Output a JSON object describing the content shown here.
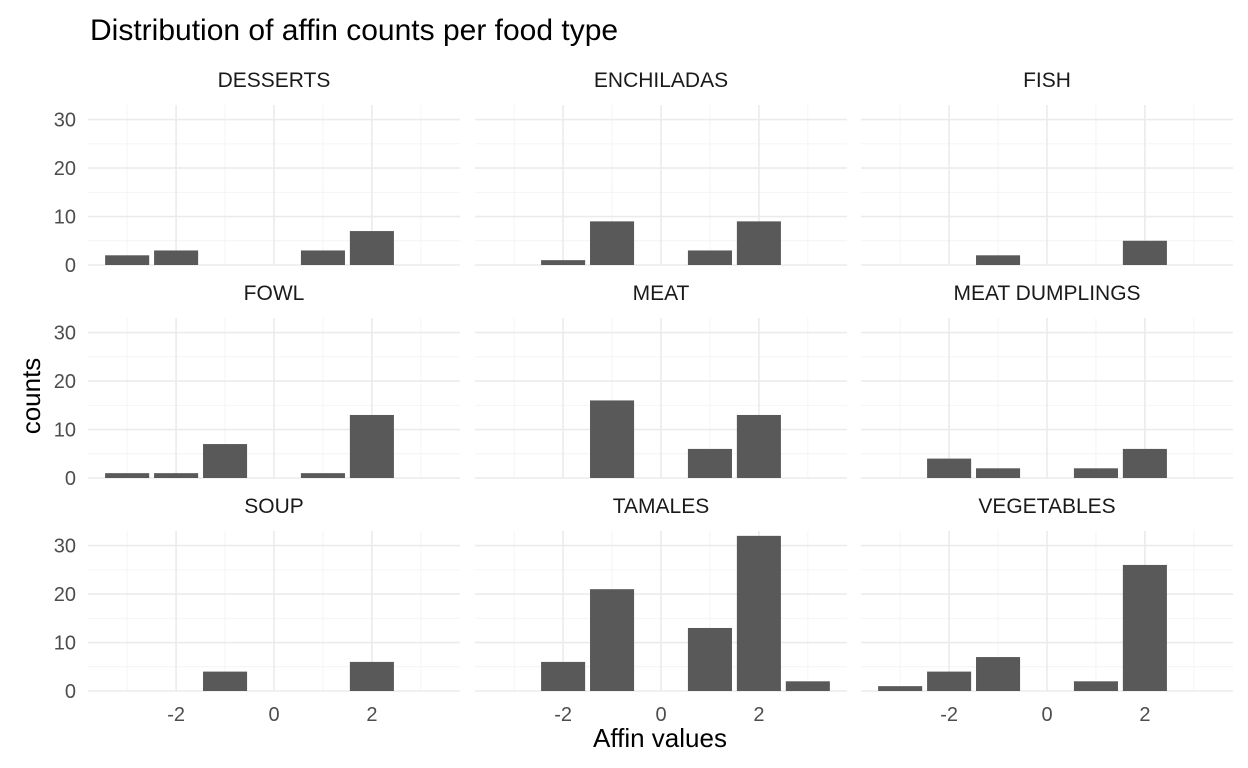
{
  "chart_data": {
    "type": "bar",
    "title": "Distribution of affin counts per food type",
    "xlabel": "Affin values",
    "ylabel": "counts",
    "layout": "facet-grid 3x3",
    "grid": true,
    "x_ticks": [
      "-2",
      "0",
      "2"
    ],
    "x_tick_values": [
      -2,
      0,
      2
    ],
    "y_ticks": [
      "0",
      "10",
      "20",
      "30"
    ],
    "y_tick_values": [
      0,
      10,
      20,
      30
    ],
    "xlim": [
      -3.8,
      3.8
    ],
    "ylim": [
      0,
      33
    ],
    "bar_color": "#595959",
    "panels": [
      {
        "name": "DESSERTS",
        "bars": [
          {
            "x": -3,
            "y": 2
          },
          {
            "x": -2,
            "y": 3
          },
          {
            "x": 1,
            "y": 3
          },
          {
            "x": 2,
            "y": 7
          }
        ]
      },
      {
        "name": "ENCHILADAS",
        "bars": [
          {
            "x": -2,
            "y": 1
          },
          {
            "x": -1,
            "y": 9
          },
          {
            "x": 1,
            "y": 3
          },
          {
            "x": 2,
            "y": 9
          }
        ]
      },
      {
        "name": "FISH",
        "bars": [
          {
            "x": -1,
            "y": 2
          },
          {
            "x": 2,
            "y": 5
          }
        ]
      },
      {
        "name": "FOWL",
        "bars": [
          {
            "x": -3,
            "y": 1
          },
          {
            "x": -2,
            "y": 1
          },
          {
            "x": -1,
            "y": 7
          },
          {
            "x": 1,
            "y": 1
          },
          {
            "x": 2,
            "y": 13
          }
        ]
      },
      {
        "name": "MEAT",
        "bars": [
          {
            "x": -1,
            "y": 16
          },
          {
            "x": 1,
            "y": 6
          },
          {
            "x": 2,
            "y": 13
          }
        ]
      },
      {
        "name": "MEAT DUMPLINGS",
        "bars": [
          {
            "x": -2,
            "y": 4
          },
          {
            "x": -1,
            "y": 2
          },
          {
            "x": 1,
            "y": 2
          },
          {
            "x": 2,
            "y": 6
          }
        ]
      },
      {
        "name": "SOUP",
        "bars": [
          {
            "x": -1,
            "y": 4
          },
          {
            "x": 2,
            "y": 6
          }
        ]
      },
      {
        "name": "TAMALES",
        "bars": [
          {
            "x": -2,
            "y": 6
          },
          {
            "x": -1,
            "y": 21
          },
          {
            "x": 1,
            "y": 13
          },
          {
            "x": 2,
            "y": 32
          },
          {
            "x": 3,
            "y": 2
          }
        ]
      },
      {
        "name": "VEGETABLES",
        "bars": [
          {
            "x": -3,
            "y": 1
          },
          {
            "x": -2,
            "y": 4
          },
          {
            "x": -1,
            "y": 7
          },
          {
            "x": 1,
            "y": 2
          },
          {
            "x": 2,
            "y": 26
          }
        ]
      }
    ]
  }
}
